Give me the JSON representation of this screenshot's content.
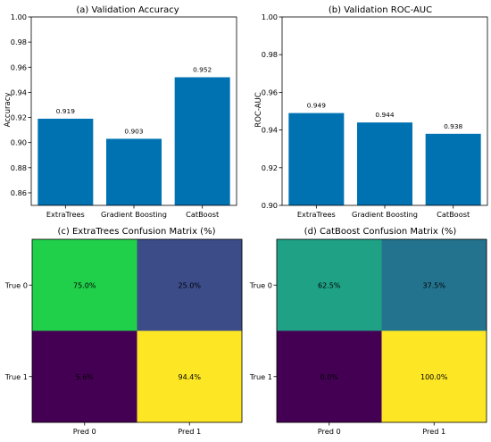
{
  "chart_data": [
    {
      "panel": "a",
      "type": "bar",
      "title": "(a) Validation Accuracy",
      "xlabel": "",
      "ylabel": "Accuracy",
      "categories": [
        "ExtraTrees",
        "Gradient Boosting",
        "CatBoost"
      ],
      "values": [
        0.919,
        0.903,
        0.952
      ],
      "value_labels": [
        "0.919",
        "0.903",
        "0.952"
      ],
      "ylim": [
        0.85,
        1.0
      ],
      "yticks": [
        "0.86",
        "0.88",
        "0.90",
        "0.92",
        "0.94",
        "0.96",
        "0.98",
        "1.00"
      ],
      "bar_color": "#0072b2",
      "grid": false
    },
    {
      "panel": "b",
      "type": "bar",
      "title": "(b) Validation ROC-AUC",
      "xlabel": "",
      "ylabel": "ROC-AUC",
      "categories": [
        "ExtraTrees",
        "Gradient Boosting",
        "CatBoost"
      ],
      "values": [
        0.949,
        0.944,
        0.938
      ],
      "value_labels": [
        "0.949",
        "0.944",
        "0.938"
      ],
      "ylim": [
        0.9,
        1.0
      ],
      "yticks": [
        "0.90",
        "0.92",
        "0.94",
        "0.96",
        "0.98",
        "1.00"
      ],
      "bar_color": "#0072b2",
      "grid": false
    },
    {
      "panel": "c",
      "type": "heatmap",
      "title": "(c) ExtraTrees Confusion Matrix (%)",
      "rows": [
        "True 0",
        "True 1"
      ],
      "cols": [
        "Pred 0",
        "Pred 1"
      ],
      "values": [
        [
          75.0,
          25.0
        ],
        [
          5.6,
          94.4
        ]
      ],
      "labels": [
        [
          "75.0%",
          "25.0%"
        ],
        [
          "5.6%",
          "94.4%"
        ]
      ],
      "colormap": "viridis",
      "colors": [
        [
          "#21d04a",
          "#3b4c89"
        ],
        [
          "#440154",
          "#fde725"
        ]
      ]
    },
    {
      "panel": "d",
      "type": "heatmap",
      "title": "(d) CatBoost Confusion Matrix (%)",
      "rows": [
        "True 0",
        "True 1"
      ],
      "cols": [
        "Pred 0",
        "Pred 1"
      ],
      "values": [
        [
          62.5,
          37.5
        ],
        [
          0.0,
          100.0
        ]
      ],
      "labels": [
        [
          "62.5%",
          "37.5%"
        ],
        [
          "0.0%",
          "100.0%"
        ]
      ],
      "colormap": "viridis",
      "colors": [
        [
          "#1fa186",
          "#23738e"
        ],
        [
          "#440154",
          "#fde725"
        ]
      ]
    }
  ]
}
